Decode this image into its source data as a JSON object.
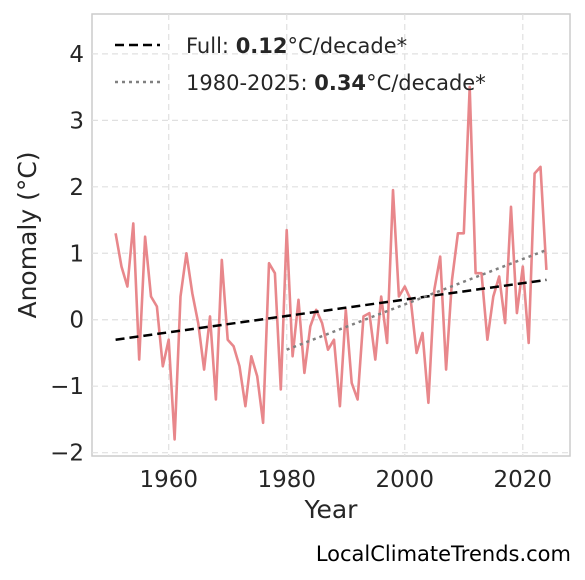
{
  "chart_data": {
    "type": "line",
    "xlabel": "Year",
    "ylabel": "Anomaly (°C)",
    "xlim": [
      1947,
      2028
    ],
    "ylim": [
      -2.05,
      4.6
    ],
    "xticks": [
      1960,
      1980,
      2000,
      2020
    ],
    "xtick_labels": [
      "1960",
      "1980",
      "2000",
      "2020"
    ],
    "yticks": [
      -2,
      -1,
      0,
      1,
      2,
      3,
      4
    ],
    "ytick_labels": [
      "−2",
      "−1",
      "0",
      "1",
      "2",
      "3",
      "4"
    ],
    "grid": true,
    "legend_position": "top-left",
    "series": [
      {
        "style": "line",
        "color": "#e8878b",
        "x": [
          1951,
          1952,
          1953,
          1954,
          1955,
          1956,
          1957,
          1958,
          1959,
          1960,
          1961,
          1962,
          1963,
          1964,
          1965,
          1966,
          1967,
          1968,
          1969,
          1970,
          1971,
          1972,
          1973,
          1974,
          1975,
          1976,
          1977,
          1978,
          1979,
          1980,
          1981,
          1982,
          1983,
          1984,
          1985,
          1986,
          1987,
          1988,
          1989,
          1990,
          1991,
          1992,
          1993,
          1994,
          1995,
          1996,
          1997,
          1998,
          1999,
          2000,
          2001,
          2002,
          2003,
          2004,
          2005,
          2006,
          2007,
          2008,
          2009,
          2010,
          2011,
          2012,
          2013,
          2014,
          2015,
          2016,
          2017,
          2018,
          2019,
          2020,
          2021,
          2022,
          2023,
          2024
        ],
        "values": [
          1.3,
          0.8,
          0.5,
          1.45,
          -0.6,
          1.25,
          0.35,
          0.2,
          -0.7,
          -0.3,
          -1.8,
          0.35,
          1.0,
          0.4,
          -0.05,
          -0.75,
          0.05,
          -1.2,
          0.9,
          -0.3,
          -0.4,
          -0.7,
          -1.3,
          -0.55,
          -0.85,
          -1.55,
          0.85,
          0.7,
          -1.05,
          1.35,
          -0.55,
          0.3,
          -0.8,
          -0.1,
          0.15,
          -0.05,
          -0.45,
          -0.3,
          -1.3,
          0.15,
          -0.95,
          -1.2,
          0.05,
          0.1,
          -0.6,
          0.35,
          -0.35,
          1.95,
          0.35,
          0.5,
          0.3,
          -0.5,
          -0.2,
          -1.25,
          0.45,
          0.95,
          -0.75,
          0.6,
          1.3,
          1.3,
          3.5,
          0.7,
          0.7,
          -0.3,
          0.35,
          0.65,
          -0.05,
          1.7,
          0.1,
          0.8,
          -0.35,
          2.2,
          2.3,
          0.75
        ]
      },
      {
        "name": "Full",
        "style": "dashed",
        "color": "#000000",
        "trend_label": "0.12",
        "unit_suffix": "°C/decade*",
        "x": [
          1951,
          2024
        ],
        "values": [
          -0.3,
          0.6
        ]
      },
      {
        "name": "1980-2025",
        "style": "dotted",
        "color": "#808080",
        "trend_label": "0.34",
        "unit_suffix": "°C/decade*",
        "x": [
          1980,
          2024
        ],
        "values": [
          -0.45,
          1.05
        ]
      }
    ]
  },
  "credit": "LocalClimateTrends.com"
}
